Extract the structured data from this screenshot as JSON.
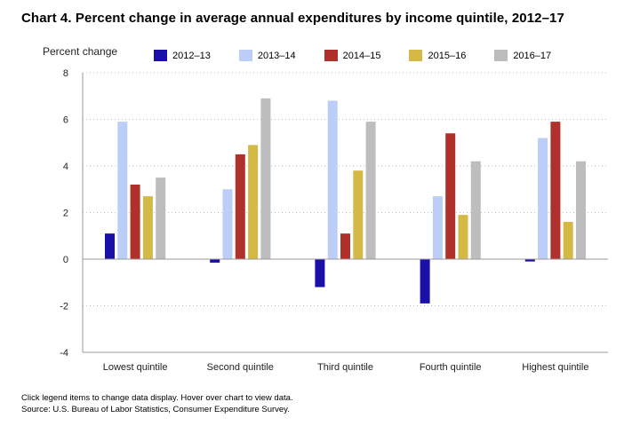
{
  "chart_data": {
    "type": "bar",
    "title": "Chart 4. Percent change in average annual expenditures by income quintile, 2012–17",
    "ylabel": "Percent change",
    "xlabel": "",
    "categories": [
      "Lowest quintile",
      "Second quintile",
      "Third quintile",
      "Fourth quintile",
      "Highest quintile"
    ],
    "ylim": [
      -4,
      8
    ],
    "yticks": [
      -4,
      -2,
      0,
      2,
      4,
      6,
      8
    ],
    "ytick_labels": [
      "-4",
      "-2",
      "0",
      "2",
      "4",
      "6",
      "8"
    ],
    "grid": true,
    "legend_position": "top",
    "series": [
      {
        "name": "2012–13",
        "color": "#1a0fa6",
        "values": [
          1.1,
          -0.15,
          -1.2,
          -1.9,
          -0.1
        ]
      },
      {
        "name": "2013–14",
        "color": "#bccdf7",
        "values": [
          5.9,
          3.0,
          6.8,
          2.7,
          5.2
        ]
      },
      {
        "name": "2014–15",
        "color": "#b0302b",
        "values": [
          3.2,
          4.5,
          1.1,
          5.4,
          5.9
        ]
      },
      {
        "name": "2015–16",
        "color": "#d4b946",
        "values": [
          2.7,
          4.9,
          3.8,
          1.9,
          1.6
        ]
      },
      {
        "name": "2016–17",
        "color": "#bdbdbd",
        "values": [
          3.5,
          6.9,
          5.9,
          4.2,
          4.2
        ]
      }
    ]
  },
  "footnote": {
    "line1": "Click legend items to change data display. Hover over chart to view data.",
    "line2": "Source: U.S. Bureau of Labor Statistics, Consumer Expenditure Survey."
  }
}
